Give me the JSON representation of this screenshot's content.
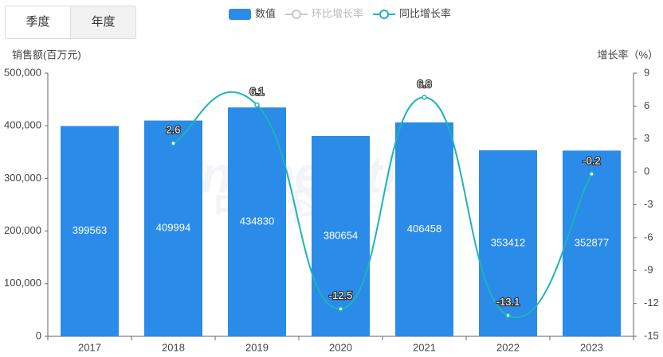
{
  "tabs": [
    "季度",
    "年度"
  ],
  "watermark": [
    "Sinohealth",
    "中康科技"
  ],
  "chart_data": {
    "type": "bar",
    "categories": [
      "2017",
      "2018",
      "2019",
      "2020",
      "2021",
      "2022",
      "2023"
    ],
    "y_label": "销售额(百万元)",
    "y2_label": "增长率（%）",
    "ylim": [
      0,
      500000
    ],
    "yticks": [
      0,
      {
        "value": 100000,
        "label": "100,000"
      },
      {
        "value": 200000,
        "label": "200,000"
      },
      {
        "value": 300000,
        "label": "300,000"
      },
      {
        "value": 400000,
        "label": "400,000"
      },
      {
        "value": 500000,
        "label": "500,000"
      }
    ],
    "y2lim": [
      -15,
      9
    ],
    "y2ticks": [
      -15,
      -12,
      -9,
      -6,
      -3,
      0,
      3,
      6,
      9
    ],
    "legend": "top",
    "series": [
      {
        "name": "数值",
        "type": "bar",
        "color": "#2b8be8",
        "values": [
          399563,
          409994,
          434830,
          380654,
          406458,
          353412,
          352877
        ]
      },
      {
        "name": "环比增长率",
        "type": "line",
        "axis": "y2",
        "color": "#c8c8c8",
        "values": [
          null,
          null,
          null,
          null,
          null,
          null,
          null
        ]
      },
      {
        "name": "同比增长率",
        "type": "line",
        "axis": "y2",
        "color": "#1fb3b8",
        "values": [
          null,
          2.6,
          6.1,
          -12.5,
          6.8,
          -13.1,
          -0.2
        ]
      }
    ]
  }
}
